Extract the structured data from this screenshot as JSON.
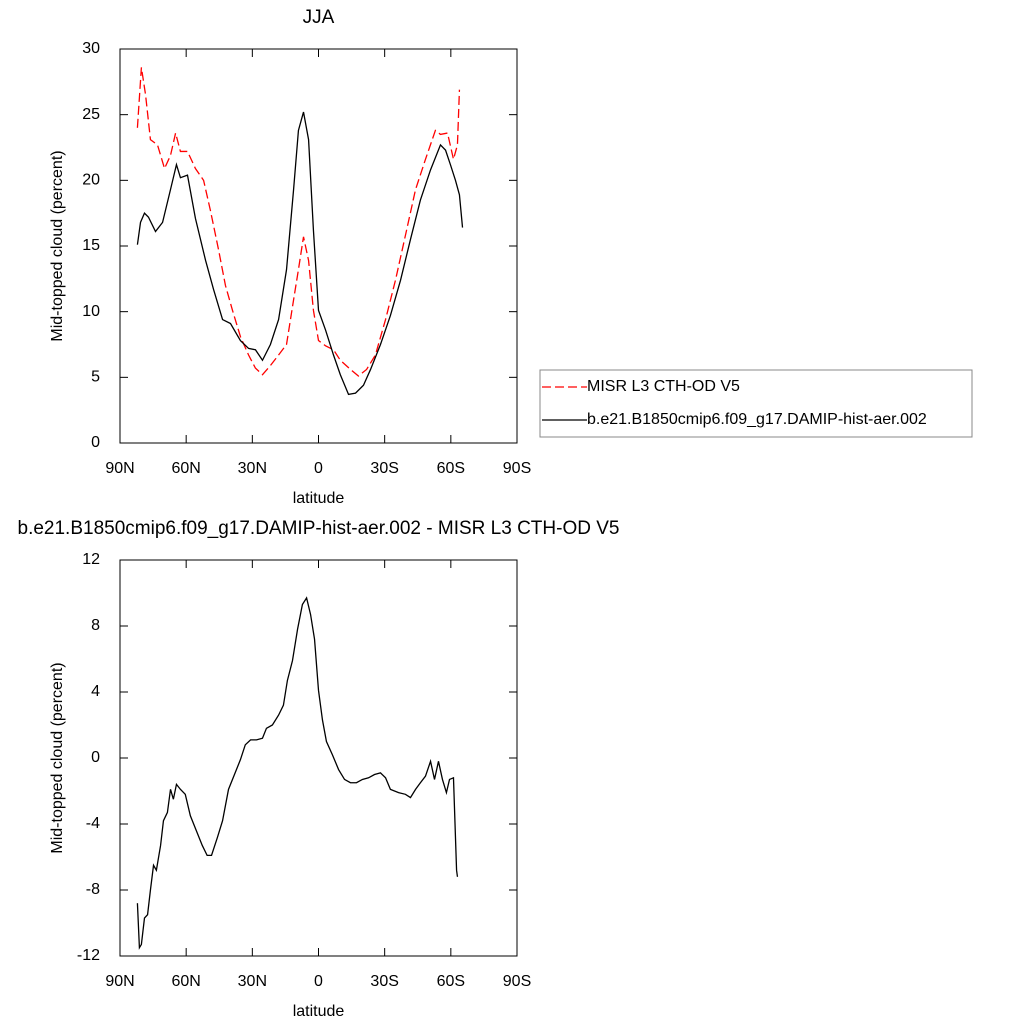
{
  "chart_data": [
    {
      "type": "line",
      "title": "JJA",
      "xlabel": "latitude",
      "ylabel": "Mid-topped cloud (percent)",
      "xlim": [
        90,
        -90
      ],
      "ylim": [
        0,
        30
      ],
      "xticks": [
        {
          "value": 90,
          "label": "90N"
        },
        {
          "value": 60,
          "label": "60N"
        },
        {
          "value": 30,
          "label": "30N"
        },
        0,
        {
          "value": -30,
          "label": "30S"
        },
        {
          "value": -60,
          "label": "60S"
        },
        {
          "value": -90,
          "label": "90S"
        }
      ],
      "yticks": [
        0,
        5,
        10,
        15,
        20,
        25,
        30
      ],
      "legend": "right",
      "series": [
        {
          "name": "MISR L3 CTH-OD V5",
          "color": "#ff0000",
          "style": "dashed",
          "x": [
            82.1,
            80.3,
            78.4,
            76.2,
            73.0,
            69.8,
            67.1,
            64.8,
            62.6,
            59.4,
            55.8,
            52.1,
            49.0,
            45.3,
            42.2,
            39.0,
            35.4,
            31.7,
            28.6,
            25.4,
            21.8,
            18.1,
            14.5,
            11.3,
            9.1,
            6.8,
            4.5,
            2.3,
            0,
            -3.2,
            -6.8,
            -9.9,
            -14.5,
            -18.1,
            -21.8,
            -25.8,
            -30.4,
            -34.9,
            -39.4,
            -44.0,
            -48.5,
            -53.0,
            -55.3,
            -58.5,
            -61.2,
            -63.0,
            -63.9
          ],
          "values": [
            24.0,
            28.6,
            26.5,
            23.1,
            22.7,
            20.9,
            21.9,
            23.6,
            22.2,
            22.2,
            20.9,
            20.0,
            17.7,
            14.7,
            12.0,
            10.1,
            8.1,
            6.7,
            5.7,
            5.2,
            5.9,
            6.7,
            7.5,
            10.9,
            13.2,
            15.7,
            13.9,
            10.1,
            7.8,
            7.4,
            7.1,
            6.3,
            5.6,
            5.1,
            5.6,
            6.7,
            9.4,
            12.4,
            15.8,
            19.3,
            21.6,
            23.8,
            23.5,
            23.6,
            21.6,
            22.7,
            26.9
          ]
        },
        {
          "name": "b.e21.B1850cmip6.f09_g17.DAMIP-hist-aer.002",
          "color": "#000000",
          "style": "solid",
          "x": [
            82.1,
            80.7,
            78.9,
            77.1,
            73.9,
            70.7,
            67.1,
            64.4,
            62.6,
            59.4,
            55.8,
            51.2,
            47.6,
            43.5,
            39.9,
            35.4,
            31.7,
            28.6,
            25.4,
            21.8,
            18.1,
            14.5,
            11.3,
            9.1,
            6.8,
            4.5,
            2.3,
            0,
            -3.2,
            -6.8,
            -9.9,
            -13.6,
            -16.8,
            -20.4,
            -23.6,
            -28.1,
            -32.6,
            -37.2,
            -41.7,
            -46.2,
            -50.8,
            -55.3,
            -57.6,
            -59.8,
            -62.1,
            -63.9,
            -65.3
          ],
          "values": [
            15.1,
            16.8,
            17.5,
            17.2,
            16.1,
            16.8,
            19.3,
            21.2,
            20.2,
            20.4,
            17.1,
            13.9,
            11.7,
            9.4,
            9.1,
            7.8,
            7.2,
            7.1,
            6.3,
            7.5,
            9.4,
            13.2,
            19.3,
            23.8,
            25.2,
            23.1,
            16.2,
            10.1,
            8.6,
            6.7,
            5.2,
            3.7,
            3.8,
            4.4,
            5.6,
            7.5,
            9.7,
            12.4,
            15.5,
            18.5,
            20.8,
            22.7,
            22.3,
            21.2,
            20.0,
            18.9,
            16.4
          ]
        }
      ]
    },
    {
      "type": "line",
      "title": "b.e21.B1850cmip6.f09_g17.DAMIP-hist-aer.002 - MISR L3 CTH-OD V5",
      "xlabel": "latitude",
      "ylabel": "Mid-topped cloud (percent)",
      "xlim": [
        90,
        -90
      ],
      "ylim": [
        -12,
        12
      ],
      "xticks": [
        {
          "value": 90,
          "label": "90N"
        },
        {
          "value": 60,
          "label": "60N"
        },
        {
          "value": 30,
          "label": "30N"
        },
        0,
        {
          "value": -30,
          "label": "30S"
        },
        {
          "value": -60,
          "label": "60S"
        },
        {
          "value": -90,
          "label": "90S"
        }
      ],
      "yticks": [
        -12,
        -8,
        -4,
        0,
        4,
        8,
        12
      ],
      "series": [
        {
          "color": "#000000",
          "style": "solid",
          "x": [
            82.1,
            81.2,
            80.3,
            78.9,
            77.5,
            76.2,
            74.8,
            73.5,
            71.6,
            70.3,
            68.5,
            67.1,
            65.8,
            64.4,
            62.6,
            60.4,
            58.1,
            55.4,
            52.7,
            50.5,
            48.5,
            45.8,
            43.5,
            40.8,
            38.1,
            35.4,
            33.2,
            30.8,
            28.1,
            25.4,
            23.6,
            20.9,
            18.1,
            15.9,
            14.1,
            11.8,
            9.5,
            7.3,
            5.4,
            3.6,
            1.8,
            0,
            -1.8,
            -3.6,
            -6.3,
            -9.1,
            -11.8,
            -14.5,
            -17.2,
            -19.9,
            -22.7,
            -25.4,
            -28.1,
            -30.4,
            -32.6,
            -36.3,
            -39.4,
            -41.7,
            -44.0,
            -46.2,
            -48.5,
            -50.8,
            -52.6,
            -54.4,
            -56.2,
            -58.0,
            -59.4,
            -61.2,
            -62.6,
            -63.0
          ],
          "values": [
            -8.8,
            -11.5,
            -11.3,
            -9.7,
            -9.5,
            -8.0,
            -6.5,
            -6.8,
            -5.3,
            -3.8,
            -3.3,
            -1.9,
            -2.5,
            -1.6,
            -1.9,
            -2.2,
            -3.5,
            -4.4,
            -5.3,
            -5.9,
            -5.9,
            -4.8,
            -3.8,
            -1.9,
            -1.0,
            -0.1,
            0.8,
            1.1,
            1.1,
            1.2,
            1.8,
            2.0,
            2.6,
            3.2,
            4.7,
            5.9,
            7.8,
            9.3,
            9.7,
            8.7,
            7.2,
            4.1,
            2.3,
            1.0,
            0.2,
            -0.7,
            -1.3,
            -1.5,
            -1.5,
            -1.3,
            -1.2,
            -1.0,
            -0.9,
            -1.2,
            -1.9,
            -2.1,
            -2.2,
            -2.4,
            -1.9,
            -1.5,
            -1.1,
            -0.2,
            -1.3,
            -0.2,
            -1.3,
            -2.1,
            -1.3,
            -1.2,
            -6.8,
            -7.2
          ]
        }
      ]
    }
  ]
}
